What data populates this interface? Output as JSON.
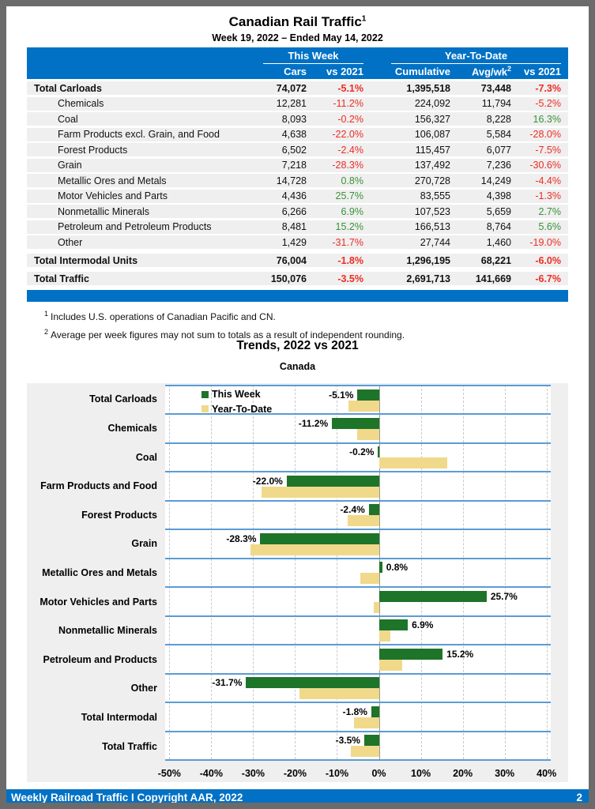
{
  "page": {
    "title": "Canadian Rail Traffic",
    "title_superscript": "1",
    "subtitle": "Week 19, 2022 – Ended May 14, 2022",
    "footer": {
      "left": "Weekly Railroad Traffic I Copyright AAR, 2022",
      "page_number": "2"
    },
    "footnotes": [
      {
        "marker": "1",
        "text": "Includes U.S. operations of Canadian Pacific and CN."
      },
      {
        "marker": "2",
        "text": "Average per week figures may not sum to totals as a result of independent rounding."
      }
    ]
  },
  "colors": {
    "header_blue": "#0071c5",
    "separator_blue": "#5b9bd5",
    "negative_red": "#ee2c24",
    "positive_green": "#3a9139",
    "row_gray": "#efefef",
    "bar_green": "#1e7428",
    "bar_yellow": "#f0d98b"
  },
  "table": {
    "group_headers": {
      "this_week": "This Week",
      "year_to_date": "Year-To-Date"
    },
    "column_headers": {
      "cars": "Cars",
      "vs_this_week": "vs 2021",
      "cumulative": "Cumulative",
      "avg_wk": "Avg/wk",
      "avg_wk_superscript": "2",
      "vs_ytd": "vs 2021"
    },
    "rows": [
      {
        "label": "Total Carloads",
        "total": true,
        "gap": false,
        "cars": "74,072",
        "vs_tw": "-5.1%",
        "cumulative": "1,395,518",
        "avg_wk": "73,448",
        "vs_ytd": "-7.3%"
      },
      {
        "label": "Chemicals",
        "total": false,
        "gap": false,
        "cars": "12,281",
        "vs_tw": "-11.2%",
        "cumulative": "224,092",
        "avg_wk": "11,794",
        "vs_ytd": "-5.2%"
      },
      {
        "label": "Coal",
        "total": false,
        "gap": false,
        "cars": "8,093",
        "vs_tw": "-0.2%",
        "cumulative": "156,327",
        "avg_wk": "8,228",
        "vs_ytd": "16.3%"
      },
      {
        "label": "Farm Products excl. Grain, and Food",
        "total": false,
        "gap": false,
        "cars": "4,638",
        "vs_tw": "-22.0%",
        "cumulative": "106,087",
        "avg_wk": "5,584",
        "vs_ytd": "-28.0%"
      },
      {
        "label": "Forest Products",
        "total": false,
        "gap": false,
        "cars": "6,502",
        "vs_tw": "-2.4%",
        "cumulative": "115,457",
        "avg_wk": "6,077",
        "vs_ytd": "-7.5%"
      },
      {
        "label": "Grain",
        "total": false,
        "gap": false,
        "cars": "7,218",
        "vs_tw": "-28.3%",
        "cumulative": "137,492",
        "avg_wk": "7,236",
        "vs_ytd": "-30.6%"
      },
      {
        "label": "Metallic Ores and Metals",
        "total": false,
        "gap": false,
        "cars": "14,728",
        "vs_tw": "0.8%",
        "cumulative": "270,728",
        "avg_wk": "14,249",
        "vs_ytd": "-4.4%"
      },
      {
        "label": "Motor Vehicles and Parts",
        "total": false,
        "gap": false,
        "cars": "4,436",
        "vs_tw": "25.7%",
        "cumulative": "83,555",
        "avg_wk": "4,398",
        "vs_ytd": "-1.3%"
      },
      {
        "label": "Nonmetallic Minerals",
        "total": false,
        "gap": false,
        "cars": "6,266",
        "vs_tw": "6.9%",
        "cumulative": "107,523",
        "avg_wk": "5,659",
        "vs_ytd": "2.7%"
      },
      {
        "label": "Petroleum and Petroleum Products",
        "total": false,
        "gap": false,
        "cars": "8,481",
        "vs_tw": "15.2%",
        "cumulative": "166,513",
        "avg_wk": "8,764",
        "vs_ytd": "5.6%"
      },
      {
        "label": "Other",
        "total": false,
        "gap": false,
        "cars": "1,429",
        "vs_tw": "-31.7%",
        "cumulative": "27,744",
        "avg_wk": "1,460",
        "vs_ytd": "-19.0%"
      },
      {
        "label": "Total Intermodal Units",
        "total": true,
        "gap": true,
        "cars": "76,004",
        "vs_tw": "-1.8%",
        "cumulative": "1,296,195",
        "avg_wk": "68,221",
        "vs_ytd": "-6.0%"
      },
      {
        "label": "Total Traffic",
        "total": true,
        "gap": true,
        "cars": "150,076",
        "vs_tw": "-3.5%",
        "cumulative": "2,691,713",
        "avg_wk": "141,669",
        "vs_ytd": "-6.7%"
      }
    ]
  },
  "chart_data": {
    "type": "bar",
    "orientation": "horizontal",
    "title": "Trends, 2022 vs 2021",
    "subtitle": "Canada",
    "categories": [
      "Total Carloads",
      "Chemicals",
      "Coal",
      "Farm Products and Food",
      "Forest Products",
      "Grain",
      "Metallic Ores and Metals",
      "Motor Vehicles and Parts",
      "Nonmetallic Minerals",
      "Petroleum and Products",
      "Other",
      "Total Intermodal",
      "Total Traffic"
    ],
    "series": [
      {
        "name": "This Week",
        "color": "#1e7428",
        "values": [
          -5.1,
          -11.2,
          -0.2,
          -22.0,
          -2.4,
          -28.3,
          0.8,
          25.7,
          6.9,
          15.2,
          -31.7,
          -1.8,
          -3.5
        ]
      },
      {
        "name": "Year-To-Date",
        "color": "#f0d98b",
        "values": [
          -7.3,
          -5.2,
          16.3,
          -28.0,
          -7.5,
          -30.6,
          -4.4,
          -1.3,
          2.7,
          5.6,
          -19.0,
          -6.0,
          -6.7
        ]
      }
    ],
    "data_labels": [
      "-5.1%",
      "-11.2%",
      "-0.2%",
      "-22.0%",
      "-2.4%",
      "-28.3%",
      "0.8%",
      "25.7%",
      "6.9%",
      "15.2%",
      "-31.7%",
      "-1.8%",
      "-3.5%"
    ],
    "x_ticks": [
      "-50%",
      "-40%",
      "-30%",
      "-20%",
      "-10%",
      "0%",
      "10%",
      "20%",
      "30%",
      "40%"
    ],
    "xlim": [
      -51,
      41
    ],
    "grid": "dashed-vertical",
    "legend_position": "inside-top-left"
  }
}
